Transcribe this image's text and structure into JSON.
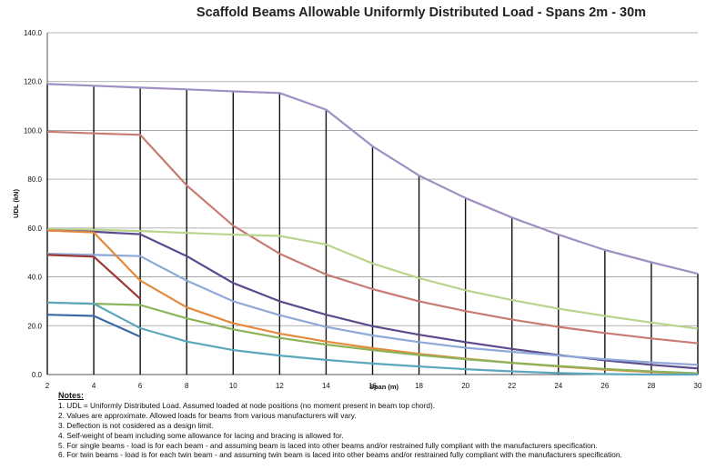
{
  "chart_data": {
    "type": "line",
    "title": "Scaffold Beams Allowable Uniformly Distributed Load - Spans 2m - 30m",
    "xlabel": "Span (m)",
    "ylabel": "UDL (kN)",
    "xlim": [
      2,
      30
    ],
    "ylim": [
      0,
      140
    ],
    "x_ticks": [
      2,
      4,
      6,
      8,
      10,
      12,
      14,
      16,
      18,
      20,
      22,
      24,
      26,
      28,
      30
    ],
    "y_ticks": [
      "0.0",
      "20.0",
      "40.0",
      "60.0",
      "80.0",
      "100.0",
      "120.0",
      "140.0"
    ],
    "grid": "horizontal",
    "colors": {
      "purple_light": "#9f8fc4",
      "rose": "#c87b72",
      "green_light": "#b9d48c",
      "purple_dark": "#5d4a8c",
      "blue_light": "#8ea8d8",
      "orange": "#e58a3c",
      "green_mid": "#8bb35a",
      "red_dark": "#9b3a32",
      "teal": "#5ba7be",
      "blue_dark": "#3c6aa8"
    },
    "series": [
      {
        "color": "#9f8fc4",
        "x": [
          2,
          4,
          6,
          8,
          10,
          12,
          14,
          16,
          18,
          20,
          22,
          24,
          26,
          28,
          30
        ],
        "y": [
          119,
          118.3,
          117.5,
          116.8,
          116,
          115.3,
          108.5,
          93.5,
          81.5,
          72.3,
          64.3,
          57.3,
          51,
          46,
          41.3
        ]
      },
      {
        "color": "#c87b72",
        "x": [
          2,
          4,
          6,
          8,
          10,
          12,
          14,
          16,
          18,
          20,
          22,
          24,
          26,
          28,
          30
        ],
        "y": [
          99.5,
          98.8,
          98.2,
          77.5,
          61,
          49.5,
          41,
          35,
          30,
          26,
          22.5,
          19.5,
          17,
          14.8,
          12.8
        ]
      },
      {
        "color": "#b9d48c",
        "x": [
          2,
          4,
          6,
          8,
          10,
          12,
          14,
          16,
          18,
          20,
          22,
          24,
          26,
          28,
          30
        ],
        "y": [
          59.5,
          59.3,
          58.8,
          58,
          57.3,
          56.8,
          53.3,
          45.5,
          39.5,
          34.5,
          30.5,
          27,
          24,
          21.3,
          18.8
        ]
      },
      {
        "color": "#5d4a8c",
        "x": [
          2,
          4,
          6,
          8,
          10,
          12,
          14,
          16,
          18,
          20,
          22,
          24,
          26,
          28,
          30
        ],
        "y": [
          59,
          58.5,
          57.5,
          48.5,
          37.5,
          30,
          24.5,
          19.8,
          16.3,
          13.3,
          10.5,
          8,
          5.8,
          4,
          2.5
        ]
      },
      {
        "color": "#8ea8d8",
        "x": [
          2,
          4,
          6,
          8,
          10,
          12,
          14,
          16,
          18,
          20,
          22,
          24,
          26,
          28,
          30
        ],
        "y": [
          49.5,
          49,
          48.5,
          38.5,
          30,
          24.3,
          19.5,
          16,
          13.3,
          11,
          9.3,
          7.8,
          6.3,
          5,
          4
        ]
      },
      {
        "color": "#e58a3c",
        "x": [
          2,
          4,
          6,
          8,
          10,
          12,
          14,
          16,
          18,
          20,
          22,
          24,
          26,
          28,
          30
        ],
        "y": [
          59,
          58.2,
          38.5,
          27.5,
          21,
          16.8,
          13.5,
          10.8,
          8.5,
          6.5,
          4.8,
          3.3,
          2,
          1,
          0.3
        ]
      },
      {
        "color": "#8bb35a",
        "x": [
          2,
          4,
          6,
          8,
          10,
          12,
          14,
          16,
          18,
          20,
          22,
          24,
          26,
          28,
          30
        ],
        "y": [
          29.5,
          29,
          28.5,
          23,
          18.5,
          15,
          12.3,
          10,
          8,
          6.3,
          4.8,
          3.5,
          2.3,
          1.3,
          0.5
        ]
      },
      {
        "color": "#9b3a32",
        "x": [
          2,
          4,
          6
        ],
        "y": [
          49,
          48.3,
          31
        ]
      },
      {
        "color": "#5ba7be",
        "x": [
          2,
          4,
          6,
          8,
          10,
          12,
          14,
          16,
          18,
          20,
          22,
          24,
          26,
          28,
          30
        ],
        "y": [
          29.5,
          29,
          19,
          13.5,
          10,
          7.8,
          6,
          4.5,
          3.3,
          2.2,
          1.3,
          0.6,
          0.2,
          0,
          0
        ]
      },
      {
        "color": "#3c6aa8",
        "x": [
          2,
          4,
          6
        ],
        "y": [
          24.5,
          24,
          15.5
        ]
      }
    ]
  },
  "notes": {
    "heading": "Notes:",
    "items": [
      "1. UDL = Uniformly Distributed Load. Assumed loaded at node positions (no  moment present in beam top chord).",
      "2. Values are approximate. Allowed loads for beams from various manufacturers will vary.",
      "3. Deflection is not cosidered as a design limit.",
      "4. Self-weight of beam including some allowance for lacing and bracing is allowed for.",
      "5. For single beams  - load is for each beam  - and assuming  beam is laced into other beams and/or restrained fully compliant with the manufacturers specification.",
      "6. For twin beams  - load is for each twin beam  - and assuming  twin beam is laced into other beams and/or restrained fully compliant with the manufacturers specification."
    ]
  }
}
